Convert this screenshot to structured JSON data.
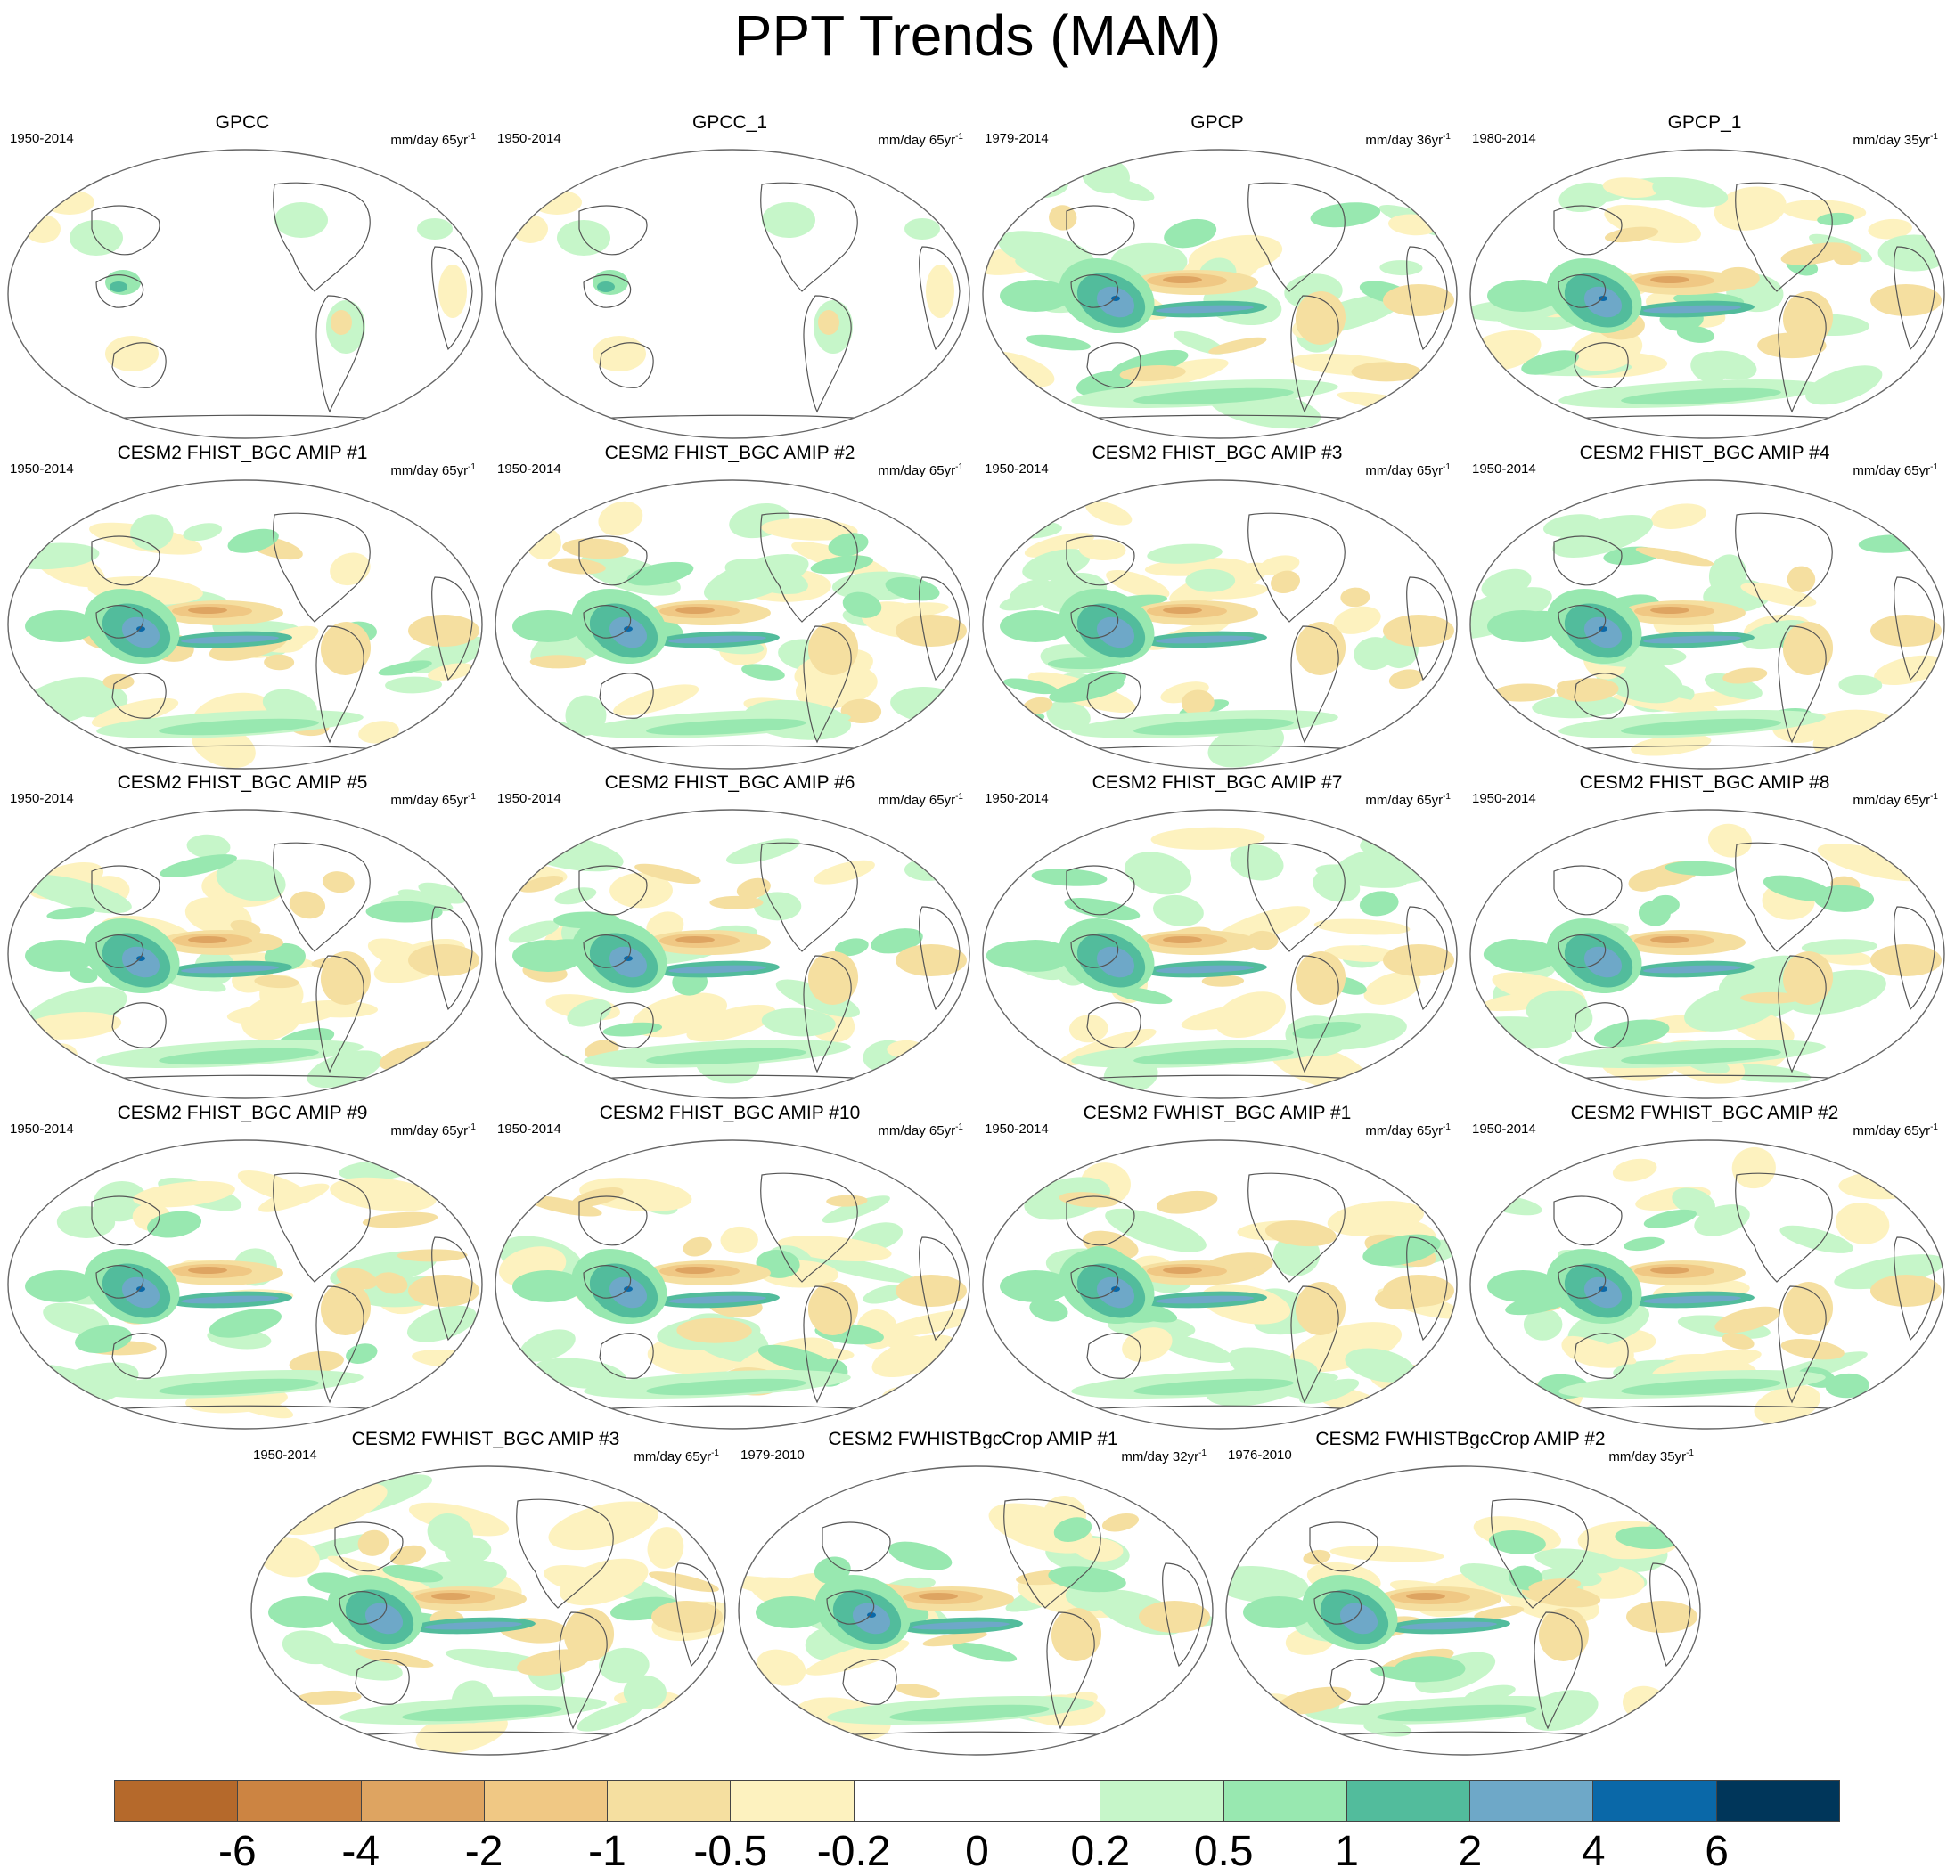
{
  "title": "PPT Trends (MAM)",
  "units_prefix": "mm/day",
  "units_suffix": "-1",
  "panels": [
    {
      "title": "GPCC",
      "period": "1950-2014",
      "span": "65yr",
      "coverage": "land"
    },
    {
      "title": "GPCC_1",
      "period": "1950-2014",
      "span": "65yr",
      "coverage": "land"
    },
    {
      "title": "GPCP",
      "period": "1979-2014",
      "span": "36yr",
      "coverage": "global"
    },
    {
      "title": "GPCP_1",
      "period": "1980-2014",
      "span": "35yr",
      "coverage": "global"
    },
    {
      "title": "CESM2 FHIST_BGC AMIP #1",
      "period": "1950-2014",
      "span": "65yr",
      "coverage": "global"
    },
    {
      "title": "CESM2 FHIST_BGC AMIP #2",
      "period": "1950-2014",
      "span": "65yr",
      "coverage": "global"
    },
    {
      "title": "CESM2 FHIST_BGC AMIP #3",
      "period": "1950-2014",
      "span": "65yr",
      "coverage": "global"
    },
    {
      "title": "CESM2 FHIST_BGC AMIP #4",
      "period": "1950-2014",
      "span": "65yr",
      "coverage": "global"
    },
    {
      "title": "CESM2 FHIST_BGC AMIP #5",
      "period": "1950-2014",
      "span": "65yr",
      "coverage": "global"
    },
    {
      "title": "CESM2 FHIST_BGC AMIP #6",
      "period": "1950-2014",
      "span": "65yr",
      "coverage": "global"
    },
    {
      "title": "CESM2 FHIST_BGC AMIP #7",
      "period": "1950-2014",
      "span": "65yr",
      "coverage": "global"
    },
    {
      "title": "CESM2 FHIST_BGC AMIP #8",
      "period": "1950-2014",
      "span": "65yr",
      "coverage": "global"
    },
    {
      "title": "CESM2 FHIST_BGC AMIP #9",
      "period": "1950-2014",
      "span": "65yr",
      "coverage": "global"
    },
    {
      "title": "CESM2 FHIST_BGC AMIP #10",
      "period": "1950-2014",
      "span": "65yr",
      "coverage": "global"
    },
    {
      "title": "CESM2 FWHIST_BGC AMIP #1",
      "period": "1950-2014",
      "span": "65yr",
      "coverage": "global"
    },
    {
      "title": "CESM2 FWHIST_BGC AMIP #2",
      "period": "1950-2014",
      "span": "65yr",
      "coverage": "global"
    },
    {
      "title": "CESM2 FWHIST_BGC AMIP #3",
      "period": "1950-2014",
      "span": "65yr",
      "coverage": "global"
    },
    {
      "title": "CESM2 FWHISTBgcCrop AMIP #1",
      "period": "1979-2010",
      "span": "32yr",
      "coverage": "global"
    },
    {
      "title": "CESM2 FWHISTBgcCrop AMIP #2",
      "period": "1976-2010",
      "span": "35yr",
      "coverage": "global"
    }
  ],
  "colorbar": {
    "labels": [
      "-6",
      "-4",
      "-2",
      "-1",
      "-0.5",
      "-0.2",
      "0",
      "0.2",
      "0.5",
      "1",
      "2",
      "4",
      "6"
    ],
    "colors": [
      "#b5692b",
      "#cc8442",
      "#dea461",
      "#f0c884",
      "#f5dfa0",
      "#fdf2bf",
      "#ffffff",
      "#ffffff",
      "#c6f6c9",
      "#98e8b0",
      "#52bc9c",
      "#6ea8c8",
      "#0a68a8",
      "#00365a"
    ]
  }
}
